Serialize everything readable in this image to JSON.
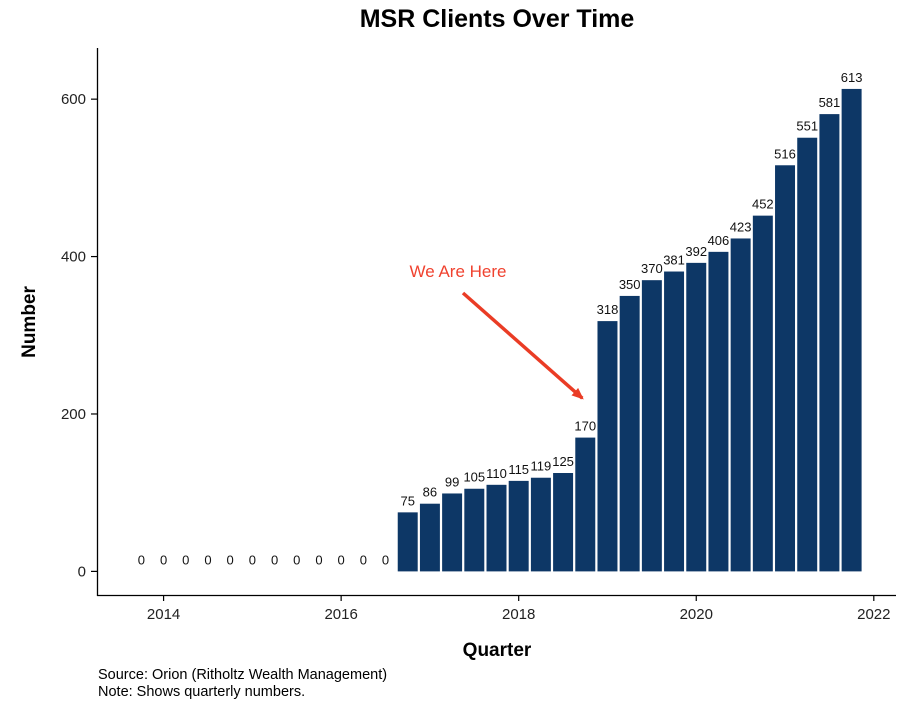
{
  "chart_data": {
    "type": "bar",
    "title": "MSR Clients Over Time",
    "xlabel": "Quarter",
    "ylabel": "Number",
    "x_ticks": [
      2014,
      2016,
      2018,
      2020,
      2022
    ],
    "y_ticks": [
      0,
      200,
      400,
      600
    ],
    "categories": [
      "2013 Q4",
      "2014 Q1",
      "2014 Q2",
      "2014 Q3",
      "2014 Q4",
      "2015 Q1",
      "2015 Q2",
      "2015 Q3",
      "2015 Q4",
      "2016 Q1",
      "2016 Q2",
      "2016 Q3",
      "2016 Q4",
      "2017 Q1",
      "2017 Q2",
      "2017 Q3",
      "2017 Q4",
      "2018 Q1",
      "2018 Q2",
      "2018 Q3",
      "2018 Q4",
      "2019 Q1",
      "2019 Q2",
      "2019 Q3",
      "2019 Q4",
      "2020 Q1",
      "2020 Q2",
      "2020 Q3",
      "2020 Q4",
      "2021 Q1",
      "2021 Q2",
      "2021 Q3",
      "2021 Q4"
    ],
    "x": [
      2013.75,
      2014.0,
      2014.25,
      2014.5,
      2014.75,
      2015.0,
      2015.25,
      2015.5,
      2015.75,
      2016.0,
      2016.25,
      2016.5,
      2016.75,
      2017.0,
      2017.25,
      2017.5,
      2017.75,
      2018.0,
      2018.25,
      2018.5,
      2018.75,
      2019.0,
      2019.25,
      2019.5,
      2019.75,
      2020.0,
      2020.25,
      2020.5,
      2020.75,
      2021.0,
      2021.25,
      2021.5,
      2021.75
    ],
    "values": [
      0,
      0,
      0,
      0,
      0,
      0,
      0,
      0,
      0,
      0,
      0,
      0,
      75,
      86,
      99,
      105,
      110,
      115,
      119,
      125,
      170,
      318,
      350,
      370,
      381,
      392,
      406,
      423,
      452,
      516,
      551,
      581,
      613
    ],
    "xlim": [
      2013.25,
      2022.25
    ],
    "ylim": [
      -30,
      665
    ],
    "grid": false,
    "bar_color": "#0d3766",
    "annotation": {
      "text": "We Are Here",
      "color": "#f0422f",
      "arrow_color": "#ea3c25",
      "points_to_x": 2018.75,
      "points_to_y": 220
    }
  },
  "captions": {
    "source": "Source: Orion (Ritholtz Wealth Management)",
    "note": "Note: Shows quarterly numbers."
  }
}
